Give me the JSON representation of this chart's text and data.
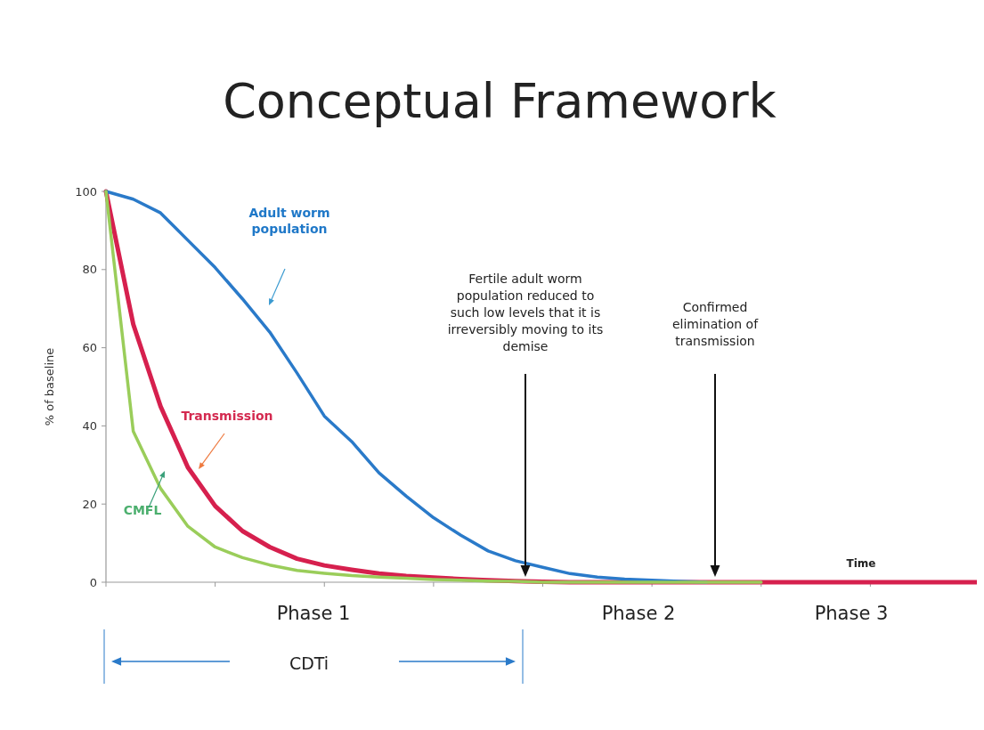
{
  "chart_data": {
    "type": "line",
    "title": "Conceptual Framework",
    "ylabel": "% of baseline",
    "categories": [
      null,
      null,
      null,
      null,
      null,
      null,
      null,
      null,
      null,
      null,
      null,
      null,
      null,
      null,
      null,
      null,
      null,
      null,
      null,
      null,
      null,
      null,
      null,
      null,
      null,
      null,
      null,
      null,
      null,
      null,
      null,
      null,
      null
    ],
    "ylim": [
      0,
      100
    ],
    "yticks": [
      0,
      20,
      40,
      60,
      80,
      100
    ],
    "grid": false,
    "marker": "none",
    "line_style": "solid",
    "series": [
      {
        "name": "Transmission",
        "color": "#d6204e",
        "values": [
          100,
          66,
          45,
          29.4,
          19.5,
          13.1,
          9,
          6,
          4.3,
          3.2,
          2.2,
          1.6,
          1.2,
          0.8,
          0.5,
          0.3,
          0.1,
          0,
          0,
          0,
          0,
          0,
          0,
          0,
          0,
          0,
          0,
          0,
          0,
          0,
          0,
          0,
          0
        ]
      },
      {
        "name": "Adult worm population",
        "color": "#2a7ac9",
        "values": [
          100,
          98,
          94.5,
          87.5,
          80.5,
          72.5,
          64,
          53.5,
          42.5,
          36,
          28,
          22,
          16.5,
          12,
          8,
          5.5,
          3.8,
          2.2,
          1.3,
          0.8,
          0.5,
          0.2,
          0,
          null,
          null,
          null,
          null,
          null,
          null,
          null,
          null,
          null,
          null
        ]
      },
      {
        "name": "CMFL",
        "color": "#9acd5a",
        "values": [
          100,
          38.6,
          24,
          14.3,
          9,
          6.3,
          4.4,
          3,
          2.3,
          1.7,
          1.3,
          1,
          0.7,
          0.5,
          0.3,
          0.2,
          0,
          0,
          0,
          0,
          0,
          0,
          0,
          0,
          0,
          null,
          null,
          null,
          null,
          null,
          null,
          null,
          null
        ]
      }
    ],
    "annotations": [
      "Fertile adult worm\npopulation reduced to\nsuch low levels that it is\nirreversibly moving to its\ndemise",
      "Confirmed\nelimination of\ntransmission",
      "Time",
      "Phase 1",
      "Phase 2",
      "Phase 3",
      "CDTi"
    ]
  }
}
